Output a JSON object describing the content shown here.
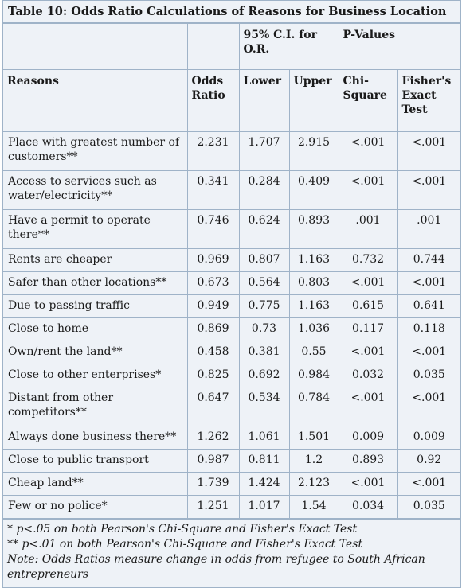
{
  "title": "Table 10: Odds Ratio Calculations of Reasons for Business Location",
  "headers": {
    "ci_group": "95% C.I. for O.R.",
    "pvalues_group": "P-Values",
    "reasons": "Reasons",
    "odds_ratio": "Odds Ratio",
    "lower": "Lower",
    "upper": "Upper",
    "chi_square": "Chi-Square",
    "fisher": "Fisher's Exact Test"
  },
  "rows": [
    {
      "reason": "Place with greatest number of customers**",
      "odds": "2.231",
      "lower": "1.707",
      "upper": "2.915",
      "chi": "<.001",
      "fisher": "<.001"
    },
    {
      "reason": "Access to services such as water/electricity**",
      "odds": "0.341",
      "lower": "0.284",
      "upper": "0.409",
      "chi": "<.001",
      "fisher": "<.001"
    },
    {
      "reason": "Have a permit to operate there**",
      "odds": "0.746",
      "lower": "0.624",
      "upper": "0.893",
      "chi": ".001",
      "fisher": ".001"
    },
    {
      "reason": "Rents are cheaper",
      "odds": "0.969",
      "lower": "0.807",
      "upper": "1.163",
      "chi": "0.732",
      "fisher": "0.744"
    },
    {
      "reason": "Safer than other locations**",
      "odds": "0.673",
      "lower": "0.564",
      "upper": "0.803",
      "chi": "<.001",
      "fisher": "<.001"
    },
    {
      "reason": "Due to passing traffic",
      "odds": "0.949",
      "lower": "0.775",
      "upper": "1.163",
      "chi": "0.615",
      "fisher": "0.641"
    },
    {
      "reason": "Close to home",
      "odds": "0.869",
      "lower": "0.73",
      "upper": "1.036",
      "chi": "0.117",
      "fisher": "0.118"
    },
    {
      "reason": "Own/rent the land**",
      "odds": "0.458",
      "lower": "0.381",
      "upper": "0.55",
      "chi": "<.001",
      "fisher": "<.001"
    },
    {
      "reason": "Close to other enterprises*",
      "odds": "0.825",
      "lower": "0.692",
      "upper": "0.984",
      "chi": "0.032",
      "fisher": "0.035"
    },
    {
      "reason": "Distant from other competitors**",
      "odds": "0.647",
      "lower": "0.534",
      "upper": "0.784",
      "chi": "<.001",
      "fisher": "<.001"
    },
    {
      "reason": "Always done business there**",
      "odds": "1.262",
      "lower": "1.061",
      "upper": "1.501",
      "chi": "0.009",
      "fisher": "0.009"
    },
    {
      "reason": "Close to public transport",
      "odds": "0.987",
      "lower": "0.811",
      "upper": "1.2",
      "chi": "0.893",
      "fisher": "0.92"
    },
    {
      "reason": "Cheap land**",
      "odds": "1.739",
      "lower": "1.424",
      "upper": "2.123",
      "chi": "<.001",
      "fisher": "<.001"
    },
    {
      "reason": "Few or no police*",
      "odds": "1.251",
      "lower": "1.017",
      "upper": "1.54",
      "chi": "0.034",
      "fisher": "0.035"
    }
  ],
  "notes": [
    "* p<.05 on both Pearson's Chi-Square and Fisher's Exact Test",
    "** p<.01 on both Pearson's Chi-Square and Fisher's Exact Test",
    "Note: Odds Ratios measure change in odds from refugee to South African entrepreneurs"
  ]
}
